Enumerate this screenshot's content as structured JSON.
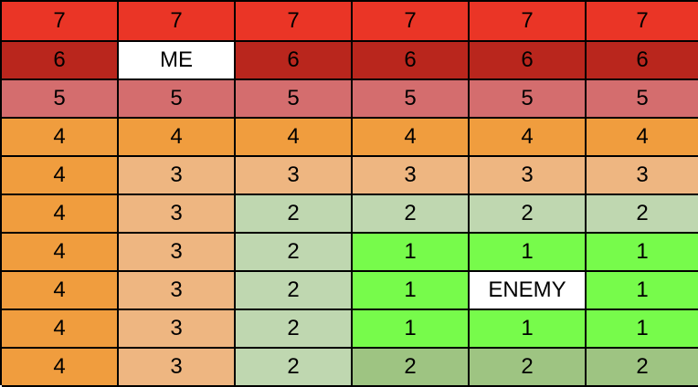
{
  "rows": [
    [
      "7",
      "7",
      "7",
      "7",
      "7",
      "7"
    ],
    [
      "6",
      "ME",
      "6",
      "6",
      "6",
      "6"
    ],
    [
      "5",
      "5",
      "5",
      "5",
      "5",
      "5"
    ],
    [
      "4",
      "4",
      "4",
      "4",
      "4",
      "4"
    ],
    [
      "4",
      "3",
      "3",
      "3",
      "3",
      "3"
    ],
    [
      "4",
      "3",
      "2",
      "2",
      "2",
      "2"
    ],
    [
      "4",
      "3",
      "2",
      "1",
      "1",
      "1"
    ],
    [
      "4",
      "3",
      "2",
      "1",
      "ENEMY",
      "1"
    ],
    [
      "4",
      "3",
      "2",
      "1",
      "1",
      "1"
    ],
    [
      "4",
      "3",
      "2",
      "2",
      "2",
      "2"
    ]
  ],
  "colors": {
    "level_7": "#ea3526",
    "level_6": "#b9261d",
    "level_5": "#d46d6e",
    "level_4": "#f09d3e",
    "level_3": "#eeb681",
    "level_2": "#bfd7b0",
    "level_2_dark": "#9ec482",
    "level_1": "#77fb4b",
    "marker": "#ffffff"
  }
}
